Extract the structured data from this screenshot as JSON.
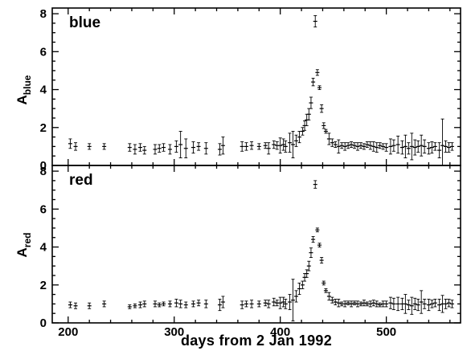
{
  "chart_data": [
    {
      "type": "scatter",
      "panel_label": "blue",
      "ylabel_main": "A",
      "ylabel_sub": "blue",
      "xlabel": "days from 2 Jan 1992",
      "xlim": [
        185,
        570
      ],
      "ylim": [
        0,
        8.3
      ],
      "x_ticks": [
        200,
        300,
        400,
        500
      ],
      "y_ticks": [
        0,
        2,
        4,
        6,
        8
      ],
      "series": [
        {
          "x": [
            202,
            207,
            220,
            234,
            258,
            263,
            268,
            272,
            282,
            286,
            290,
            296,
            302,
            306,
            311,
            318,
            323,
            330,
            343,
            346,
            364,
            368,
            373,
            380,
            386,
            389,
            394,
            397,
            400,
            403,
            405,
            409,
            412,
            415,
            418,
            421,
            423,
            425,
            427,
            429,
            431,
            433,
            435,
            437,
            439,
            441,
            443,
            446,
            449,
            452,
            455,
            458,
            461,
            464,
            467,
            470,
            473,
            476,
            479,
            482,
            485,
            488,
            491,
            494,
            497,
            500,
            504,
            507,
            511,
            515,
            518,
            521,
            524,
            527,
            530,
            533,
            536,
            540,
            543,
            546,
            550,
            553,
            556,
            559,
            562
          ],
          "y": [
            1.15,
            1.0,
            1.0,
            1.0,
            0.95,
            0.85,
            0.95,
            0.8,
            0.85,
            0.9,
            0.95,
            0.85,
            1.0,
            1.1,
            0.9,
            0.95,
            1.0,
            0.9,
            0.85,
            1.05,
            1.0,
            1.0,
            1.05,
            1.0,
            1.05,
            0.9,
            1.1,
            1.05,
            1.05,
            1.1,
            1.0,
            1.2,
            1.1,
            1.3,
            1.5,
            1.8,
            2.1,
            2.4,
            2.7,
            3.3,
            4.4,
            7.6,
            4.9,
            4.1,
            3.0,
            2.1,
            1.8,
            1.4,
            1.2,
            1.1,
            1.0,
            1.05,
            1.0,
            1.05,
            1.1,
            1.05,
            1.0,
            1.05,
            1.0,
            1.1,
            1.05,
            1.0,
            0.95,
            1.05,
            1.0,
            0.95,
            1.0,
            1.05,
            1.1,
            0.95,
            1.0,
            0.9,
            1.0,
            0.95,
            1.0,
            1.05,
            1.0,
            0.9,
            0.95,
            1.0,
            0.8,
            1.05,
            1.0,
            0.95,
            1.0
          ],
          "err": [
            0.25,
            0.2,
            0.15,
            0.15,
            0.2,
            0.25,
            0.2,
            0.2,
            0.25,
            0.2,
            0.2,
            0.25,
            0.3,
            0.7,
            0.5,
            0.3,
            0.2,
            0.3,
            0.3,
            0.45,
            0.25,
            0.2,
            0.2,
            0.15,
            0.15,
            0.3,
            0.2,
            0.2,
            0.4,
            0.3,
            0.3,
            0.5,
            0.7,
            0.3,
            0.3,
            0.2,
            0.25,
            0.3,
            0.3,
            0.3,
            0.2,
            0.3,
            0.15,
            0.1,
            0.2,
            0.15,
            0.1,
            0.3,
            0.2,
            0.15,
            0.35,
            0.15,
            0.2,
            0.15,
            0.15,
            0.15,
            0.2,
            0.15,
            0.15,
            0.15,
            0.2,
            0.25,
            0.25,
            0.15,
            0.15,
            0.2,
            0.4,
            0.3,
            0.45,
            0.35,
            0.6,
            0.3,
            0.7,
            0.4,
            0.3,
            0.55,
            0.35,
            0.3,
            0.3,
            0.2,
            0.4,
            1.4,
            0.3,
            0.25,
            0.2
          ]
        }
      ]
    },
    {
      "type": "scatter",
      "panel_label": "red",
      "ylabel_main": "A",
      "ylabel_sub": "red",
      "xlabel": "days from 2 Jan 1992",
      "xlim": [
        185,
        570
      ],
      "ylim": [
        0,
        8.3
      ],
      "x_ticks": [
        200,
        300,
        400,
        500
      ],
      "y_ticks": [
        0,
        2,
        4,
        6,
        8
      ],
      "series": [
        {
          "x": [
            202,
            207,
            220,
            234,
            258,
            263,
            268,
            272,
            282,
            286,
            290,
            296,
            302,
            306,
            311,
            318,
            323,
            330,
            343,
            346,
            364,
            368,
            373,
            380,
            386,
            389,
            394,
            397,
            400,
            403,
            405,
            409,
            412,
            415,
            418,
            421,
            423,
            425,
            427,
            429,
            431,
            433,
            435,
            437,
            439,
            441,
            443,
            446,
            449,
            452,
            455,
            458,
            461,
            464,
            467,
            470,
            473,
            476,
            479,
            482,
            485,
            488,
            491,
            494,
            497,
            500,
            504,
            507,
            511,
            515,
            518,
            521,
            524,
            527,
            530,
            533,
            536,
            540,
            543,
            546,
            550,
            553,
            556,
            559,
            562
          ],
          "y": [
            0.95,
            0.9,
            0.9,
            1.0,
            0.85,
            0.9,
            0.95,
            1.0,
            1.0,
            0.95,
            1.0,
            1.0,
            1.05,
            1.0,
            0.95,
            1.0,
            1.05,
            1.0,
            0.95,
            1.1,
            0.95,
            1.0,
            1.0,
            1.0,
            1.05,
            1.0,
            1.1,
            1.05,
            1.05,
            1.1,
            1.0,
            1.1,
            1.2,
            1.4,
            1.8,
            2.0,
            2.4,
            2.6,
            3.0,
            3.7,
            4.4,
            7.3,
            4.9,
            4.1,
            3.3,
            2.1,
            1.7,
            1.4,
            1.2,
            1.1,
            1.05,
            1.0,
            1.0,
            1.05,
            1.0,
            1.05,
            1.0,
            1.0,
            1.05,
            1.0,
            1.0,
            1.05,
            1.0,
            0.95,
            1.0,
            1.0,
            1.05,
            1.0,
            1.0,
            1.0,
            1.0,
            0.95,
            0.9,
            1.0,
            0.95,
            1.1,
            1.0,
            0.95,
            1.0,
            1.05,
            0.95,
            1.0,
            1.0,
            1.05,
            1.0
          ],
          "err": [
            0.15,
            0.15,
            0.15,
            0.15,
            0.1,
            0.1,
            0.15,
            0.15,
            0.15,
            0.1,
            0.1,
            0.15,
            0.2,
            0.2,
            0.15,
            0.15,
            0.15,
            0.2,
            0.3,
            0.3,
            0.2,
            0.15,
            0.2,
            0.15,
            0.15,
            0.2,
            0.2,
            0.15,
            0.3,
            0.25,
            0.25,
            0.4,
            1.1,
            0.3,
            0.3,
            0.2,
            0.2,
            0.2,
            0.25,
            0.25,
            0.15,
            0.2,
            0.1,
            0.1,
            0.15,
            0.1,
            0.1,
            0.2,
            0.15,
            0.15,
            0.2,
            0.1,
            0.15,
            0.1,
            0.15,
            0.1,
            0.15,
            0.1,
            0.15,
            0.1,
            0.15,
            0.15,
            0.15,
            0.1,
            0.15,
            0.15,
            0.3,
            0.3,
            0.35,
            0.3,
            0.5,
            0.25,
            0.45,
            0.3,
            0.3,
            0.6,
            0.25,
            0.3,
            0.2,
            0.2,
            0.3,
            0.45,
            0.25,
            0.2,
            0.2
          ]
        }
      ]
    }
  ]
}
